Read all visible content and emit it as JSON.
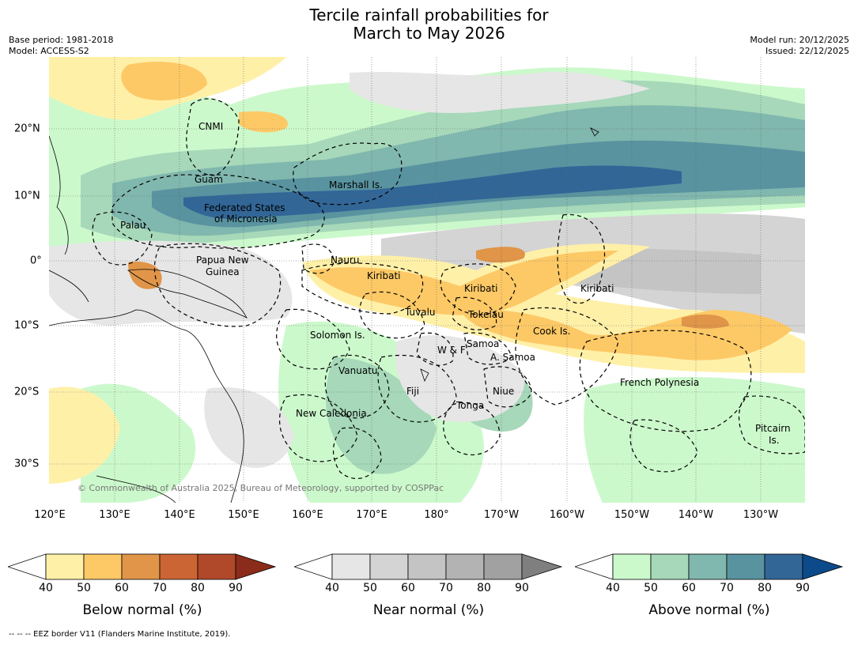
{
  "title_line1": "Tercile rainfall probabilities for",
  "title_line2": "March to May 2026",
  "meta_left": {
    "base_period": "Base period: 1981-2018",
    "model": "Model: ACCESS-S2"
  },
  "meta_right": {
    "model_run": "Model run: 20/12/2025",
    "issued": "Issued: 22/12/2025"
  },
  "lon_labels": [
    "120°E",
    "130°E",
    "140°E",
    "150°E",
    "160°E",
    "170°E",
    "180°",
    "170°W",
    "160°W",
    "150°W",
    "140°W",
    "130°W"
  ],
  "lat_labels": [
    "20°N",
    "10°N",
    "0°",
    "10°S",
    "20°S",
    "30°S"
  ],
  "region_labels": {
    "cnmi": "CNMI",
    "guam": "Guam",
    "marshall": "Marshall Is.",
    "fsm1": "Federated States",
    "fsm2": "of Micronesia",
    "palau": "Palau",
    "png1": "Papua New",
    "png2": "Guinea",
    "nauru": "Nauru",
    "kiribati_w": "Kiribati",
    "kiribati_c": "Kiribati",
    "kiribati_e": "Kiribati",
    "tuvalu": "Tuvalu",
    "tokelau": "Tokelau",
    "cook": "Cook Is.",
    "solomon": "Solomon Is.",
    "wf": "W & F",
    "samoa": "Samoa",
    "asamoa": "A. Samoa",
    "vanuatu": "Vanuatu",
    "fiji": "Fiji",
    "niue": "Niue",
    "tonga": "Tonga",
    "french_poly": "French Polynesia",
    "newcal": "New Caledonia",
    "pitcairn1": "Pitcairn",
    "pitcairn2": "Is."
  },
  "copyright": "© Commonwealth of Australia 2025, Bureau of Meteorology, supported by COSPPac",
  "colorbars": [
    {
      "label": "Below normal (%)",
      "ticks": [
        "40",
        "50",
        "60",
        "70",
        "80",
        "90"
      ],
      "colors": [
        "#fff0a8",
        "#fdc966",
        "#e09549",
        "#cc6534",
        "#b0492a",
        "#8b2c1a"
      ]
    },
    {
      "label": "Near normal (%)",
      "ticks": [
        "40",
        "50",
        "60",
        "70",
        "80",
        "90"
      ],
      "colors": [
        "#e6e6e6",
        "#d4d4d4",
        "#c4c4c4",
        "#b3b3b3",
        "#a1a1a1",
        "#7f7f7f"
      ]
    },
    {
      "label": "Above normal (%)",
      "ticks": [
        "40",
        "50",
        "60",
        "70",
        "80",
        "90"
      ],
      "colors": [
        "#ccf9cc",
        "#a6d8b9",
        "#80b7ae",
        "#5993a0",
        "#326697",
        "#0d4a8a"
      ]
    }
  ],
  "footnote": "-- -- -- EEZ border V11 (Flanders Marine Institute, 2019)."
}
